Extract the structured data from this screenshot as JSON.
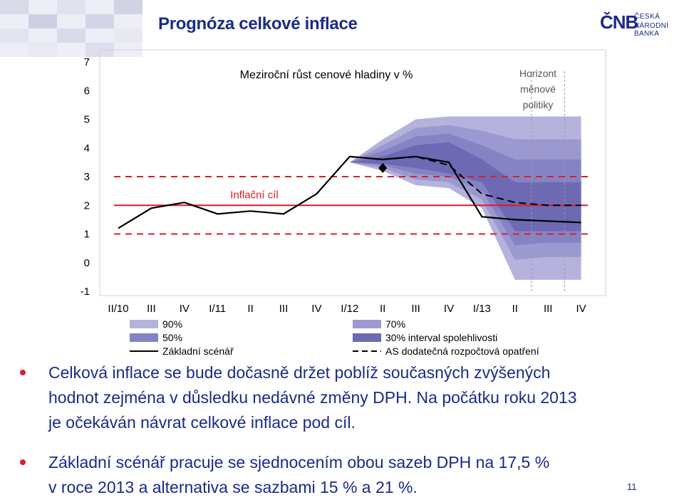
{
  "header": {
    "title": "Prognóza celkové inflace",
    "logo_mark": "ČNB",
    "logo_line1": "ČESKÁ",
    "logo_line2": "NÁRODNÍ BANKA"
  },
  "colors": {
    "title": "#1a2b87",
    "band90": "#b5b3dd",
    "band70": "#9c99d1",
    "band50": "#8683c4",
    "band30": "#6d69b3",
    "target": "#d61f2b",
    "bullet": "#d61f2b"
  },
  "chart_data": {
    "type": "line",
    "title": "Meziroční růst cenové hladiny v %",
    "x": [
      "II/10",
      "III",
      "IV",
      "I/11",
      "II",
      "III",
      "IV",
      "I/12",
      "II",
      "III",
      "IV",
      "I/13",
      "II",
      "III",
      "IV"
    ],
    "ylim": [
      -1,
      7
    ],
    "yticks": [
      "-1",
      "0",
      "1",
      "2",
      "3",
      "4",
      "5",
      "6",
      "7"
    ],
    "target": {
      "label": "Inflační cíl",
      "value": 2,
      "lower": 1,
      "upper": 3
    },
    "horizon": {
      "label": [
        "Horizont",
        "měnové",
        "politiky"
      ],
      "from": 12.5,
      "to": 13.5
    },
    "fan_start": 7,
    "fan_x": [
      7,
      8,
      9,
      10,
      11,
      12,
      13,
      14
    ],
    "fan": {
      "p90": {
        "lower": [
          3.5,
          3.2,
          2.7,
          2.6,
          1.9,
          -0.6,
          -0.6,
          -0.6
        ],
        "upper": [
          3.5,
          4.3,
          5.0,
          5.1,
          5.1,
          5.1,
          5.1,
          5.1
        ]
      },
      "p70": {
        "lower": [
          3.5,
          3.3,
          2.9,
          2.8,
          2.2,
          0.1,
          0.2,
          0.2
        ],
        "upper": [
          3.5,
          4.1,
          4.7,
          4.8,
          4.6,
          4.3,
          4.3,
          4.3
        ]
      },
      "p50": {
        "lower": [
          3.5,
          3.4,
          3.1,
          3.0,
          2.5,
          0.6,
          0.7,
          0.7
        ],
        "upper": [
          3.5,
          3.9,
          4.4,
          4.5,
          4.1,
          3.6,
          3.6,
          3.6
        ]
      },
      "p30": {
        "lower": [
          3.5,
          3.45,
          3.3,
          3.1,
          2.8,
          1.1,
          1.1,
          1.1
        ],
        "upper": [
          3.5,
          3.7,
          4.1,
          4.2,
          3.6,
          2.8,
          2.8,
          2.8
        ]
      }
    },
    "series": [
      {
        "name": "Základní scénář",
        "style": "solid",
        "values": [
          1.2,
          1.9,
          2.1,
          1.7,
          1.8,
          1.7,
          2.4,
          3.7,
          3.6,
          3.7,
          3.5,
          1.6,
          1.5,
          1.45,
          1.4
        ]
      },
      {
        "name": "AS dodatečná rozpočtová opatření",
        "style": "dashed",
        "from_index": 7,
        "values": [
          null,
          null,
          null,
          null,
          null,
          null,
          null,
          3.7,
          3.6,
          3.7,
          3.4,
          2.4,
          2.1,
          2.0,
          2.0
        ]
      }
    ],
    "marker": {
      "x": 8,
      "y": 3.3
    },
    "legend": [
      {
        "key": "band90",
        "label": "90%"
      },
      {
        "key": "band70",
        "label": "70%"
      },
      {
        "key": "band50",
        "label": "50%"
      },
      {
        "key": "band30",
        "label": "30% interval spolehlivosti"
      },
      {
        "key": "solid",
        "label": "Základní scénář"
      },
      {
        "key": "dashed",
        "label": "AS dodatečná rozpočtová opatření"
      }
    ]
  },
  "bullets": [
    {
      "line1": "Celková inflace se bude dočasně držet poblíž současných zvýšených",
      "line2": "hodnot zejména v důsledku nedávné změny DPH. Na počátku roku 2013",
      "line3": "je očekáván návrat celkové inflace pod cíl."
    },
    {
      "line1": "Základní scénář pracuje se sjednocením obou sazeb DPH na 17,5 %",
      "line2": "v roce 2013 a alternativa se sazbami 15 % a 21 %."
    }
  ],
  "page_number": "11"
}
